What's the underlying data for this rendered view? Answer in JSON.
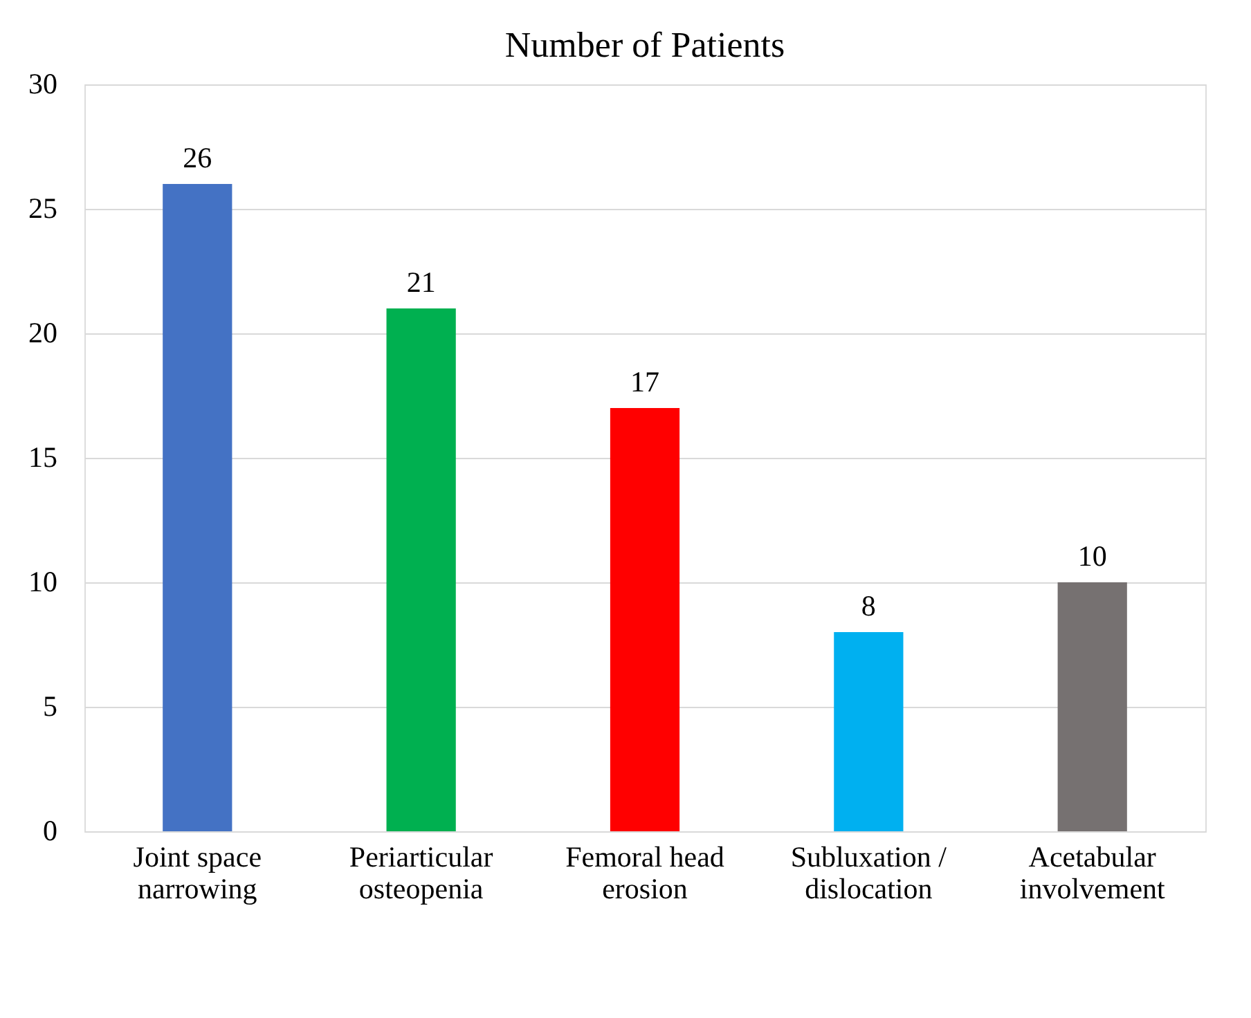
{
  "chart_data": {
    "type": "bar",
    "title": "Number of Patients",
    "categories": [
      "Joint space\nnarrowing",
      "Periarticular\nosteopenia",
      "Femoral head\nerosion",
      "Subluxation /\ndislocation",
      "Acetabular\ninvolvement"
    ],
    "values": [
      26,
      21,
      17,
      8,
      10
    ],
    "colors": [
      "#4472c4",
      "#00b050",
      "#ff0000",
      "#00b0f0",
      "#767171"
    ],
    "ylim": [
      0,
      30
    ],
    "yticks": [
      0,
      5,
      10,
      15,
      20,
      25,
      30
    ],
    "grid": "y",
    "data_labels": true
  }
}
